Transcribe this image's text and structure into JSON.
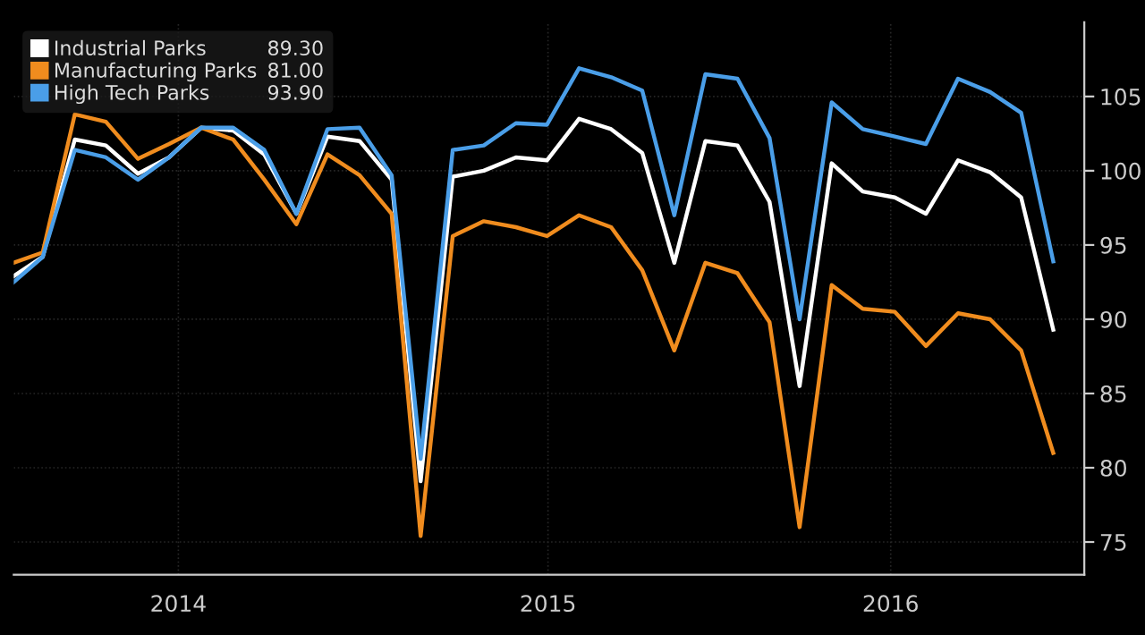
{
  "chart_data": {
    "type": "line",
    "x": [
      "2014-02",
      "2014-03",
      "2014-04",
      "2014-05",
      "2014-06",
      "2014-07",
      "2014-08",
      "2014-09",
      "2014-10",
      "2014-11",
      "2014-12",
      "2015-01",
      "2015-02",
      "2015-03",
      "2015-04",
      "2015-05",
      "2015-06",
      "2015-07",
      "2015-08",
      "2015-09",
      "2015-10",
      "2015-11",
      "2015-12",
      "2016-01",
      "2016-02",
      "2016-03",
      "2016-04",
      "2016-05",
      "2016-06",
      "2016-07",
      "2016-08",
      "2016-09",
      "2016-10",
      "2016-11"
    ],
    "series": [
      {
        "name": "Industrial Parks",
        "color": "#ffffff",
        "values": [
          92.9,
          94.2,
          102.1,
          101.7,
          99.8,
          100.9,
          102.9,
          102.7,
          101.1,
          97.1,
          102.3,
          102.0,
          99.4,
          79.1,
          99.6,
          100.0,
          100.9,
          100.7,
          103.5,
          102.8,
          101.2,
          93.8,
          102.0,
          101.7,
          97.9,
          85.5,
          100.5,
          98.6,
          98.2,
          97.1,
          100.7,
          99.9,
          98.2,
          89.3
        ]
      },
      {
        "name": "Manufacturing Parks",
        "color": "#f08c1e",
        "values": [
          93.8,
          94.5,
          103.8,
          103.3,
          100.8,
          101.8,
          102.9,
          102.1,
          99.4,
          96.4,
          101.1,
          99.7,
          97.1,
          75.4,
          95.6,
          96.6,
          96.2,
          95.6,
          97.0,
          96.2,
          93.3,
          87.9,
          93.8,
          93.1,
          89.8,
          76.0,
          92.3,
          90.7,
          90.5,
          88.2,
          90.4,
          90.0,
          87.9,
          81.0
        ]
      },
      {
        "name": "High Tech Parks",
        "color": "#4a9ee8",
        "values": [
          92.5,
          94.2,
          101.4,
          100.9,
          99.4,
          100.9,
          102.9,
          102.9,
          101.4,
          97.1,
          102.8,
          102.9,
          99.7,
          80.6,
          101.4,
          101.7,
          103.2,
          103.1,
          106.9,
          106.3,
          105.4,
          97.0,
          106.5,
          106.2,
          102.2,
          90.0,
          104.6,
          102.8,
          102.3,
          101.8,
          106.2,
          105.3,
          103.9,
          93.9
        ]
      }
    ],
    "xlim": [
      "2014-02",
      "2016-12"
    ],
    "xticks": [
      {
        "value": "2014-07-10",
        "label": "2014"
      },
      {
        "value": "2015-07-02",
        "label": "2015"
      },
      {
        "value": "2016-05-28",
        "label": "2016"
      }
    ],
    "ylim": [
      72.8,
      110
    ],
    "yticks": [
      75,
      80,
      85,
      90,
      95,
      100,
      105
    ],
    "annotations": [
      "89.30",
      "81.00",
      "93.90"
    ],
    "grid": true,
    "legend": "top left",
    "line_style": "solid",
    "marker": "none"
  }
}
